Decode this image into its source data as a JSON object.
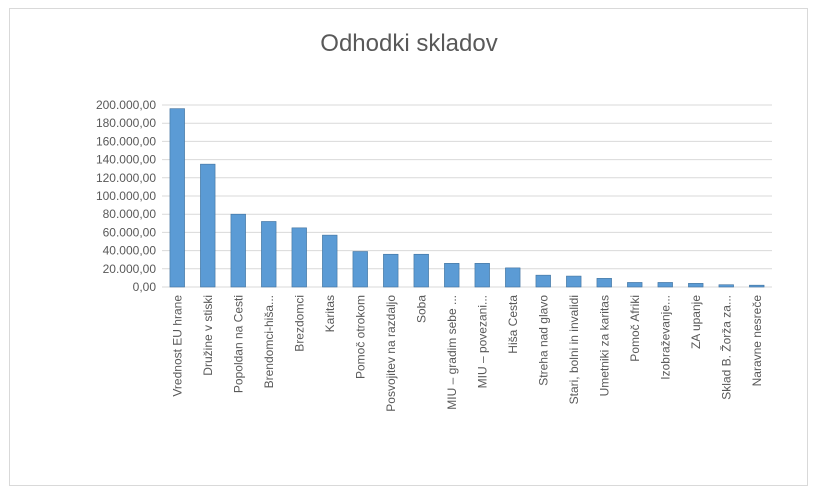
{
  "chart_data": {
    "type": "bar",
    "title": "Odhodki skladov",
    "xlabel": "",
    "ylabel": "",
    "ylim": [
      0,
      200000
    ],
    "yticks": [
      0,
      20000,
      40000,
      60000,
      80000,
      100000,
      120000,
      140000,
      160000,
      180000,
      200000
    ],
    "ytick_labels": [
      "0,00",
      "20.000,00",
      "40.000,00",
      "60.000,00",
      "80.000,00",
      "100.000,00",
      "120.000,00",
      "140.000,00",
      "160.000,00",
      "180.000,00",
      "200.000,00"
    ],
    "grid": true,
    "legend": "none",
    "bar_color": "#5b9bd5",
    "categories": [
      "Vrednost EU hrane",
      "Družine v stiski",
      "Popoldan na Cesti",
      "Brendomci-hiša...",
      "Brezdomci",
      "Karitas",
      "Pomoč otrokom",
      "Posvojitev na razdaljo",
      "Soba",
      "MIU – gradim sebe ...",
      "MIU – povezani...",
      "Hiša Cesta",
      "Streha nad glavo",
      "Stari, bolni in invalidi",
      "Umetniki za karitas",
      "Pomoč Afriki",
      "Izobraževanje...",
      "ZA upanje",
      "Sklad B. Žorža za...",
      "Naravne nesreče"
    ],
    "values": [
      196000,
      135000,
      80000,
      72000,
      65000,
      57000,
      39000,
      36000,
      36000,
      26000,
      26000,
      21000,
      13000,
      12000,
      9500,
      5000,
      5000,
      4000,
      2500,
      2000
    ]
  }
}
